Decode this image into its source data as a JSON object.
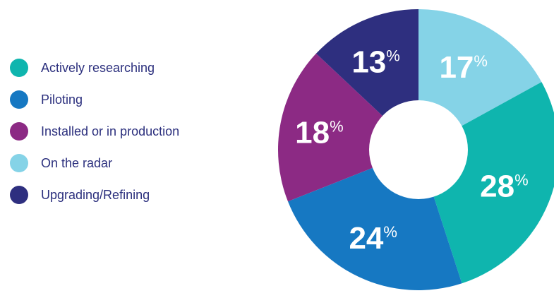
{
  "chart_data": {
    "type": "pie",
    "style": "donut",
    "legend_position": "left",
    "unit": "%",
    "categories": [
      "Actively researching",
      "Piloting",
      "Installed or in production",
      "On the radar",
      "Upgrading/Refining"
    ],
    "values": [
      28,
      24,
      18,
      17,
      13
    ],
    "colors": [
      "#0fb5ae",
      "#1678c2",
      "#8c2a84",
      "#85d3e7",
      "#2e2f7f"
    ],
    "draw_order": [
      3,
      0,
      1,
      2,
      4
    ]
  }
}
